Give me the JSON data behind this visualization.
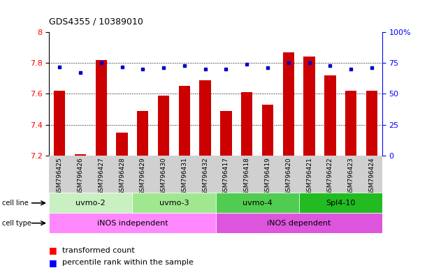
{
  "title": "GDS4355 / 10389010",
  "samples": [
    "GSM796425",
    "GSM796426",
    "GSM796427",
    "GSM796428",
    "GSM796429",
    "GSM796430",
    "GSM796431",
    "GSM796432",
    "GSM796417",
    "GSM796418",
    "GSM796419",
    "GSM796420",
    "GSM796421",
    "GSM796422",
    "GSM796423",
    "GSM796424"
  ],
  "red_values": [
    7.62,
    7.21,
    7.82,
    7.35,
    7.49,
    7.59,
    7.65,
    7.69,
    7.49,
    7.61,
    7.53,
    7.87,
    7.84,
    7.72,
    7.62,
    7.62
  ],
  "blue_values": [
    72,
    67,
    75,
    72,
    70,
    71,
    73,
    70,
    70,
    74,
    71,
    75,
    75,
    73,
    70,
    71
  ],
  "ylim_left": [
    7.2,
    8.0
  ],
  "ylim_right": [
    0,
    100
  ],
  "yticks_left": [
    7.2,
    7.4,
    7.6,
    7.8,
    8.0
  ],
  "yticks_right": [
    0,
    25,
    50,
    75,
    100
  ],
  "ytick_labels_left": [
    "7.2",
    "7.4",
    "7.6",
    "7.8",
    "8"
  ],
  "ytick_labels_right": [
    "0",
    "25",
    "50",
    "75",
    "100%"
  ],
  "cell_line_data": [
    {
      "label": "uvmo-2",
      "start": 0,
      "end": 4,
      "color": "#c8f0c0"
    },
    {
      "label": "uvmo-3",
      "start": 4,
      "end": 8,
      "color": "#a0e890"
    },
    {
      "label": "uvmo-4",
      "start": 8,
      "end": 12,
      "color": "#50cc50"
    },
    {
      "label": "Spl4-10",
      "start": 12,
      "end": 16,
      "color": "#22bb22"
    }
  ],
  "cell_type_data": [
    {
      "label": "iNOS independent",
      "start": 0,
      "end": 8,
      "color": "#ff88ff"
    },
    {
      "label": "iNOS dependent",
      "start": 8,
      "end": 16,
      "color": "#dd55dd"
    }
  ],
  "bar_color": "#cc0000",
  "dot_color": "#0000cc",
  "bar_width": 0.55,
  "background_color": "#ffffff",
  "grid_dotted_lines": [
    7.4,
    7.6,
    7.8
  ],
  "legend_items": [
    {
      "label": "transformed count",
      "color": "#cc0000"
    },
    {
      "label": "percentile rank within the sample",
      "color": "#0000cc"
    }
  ]
}
